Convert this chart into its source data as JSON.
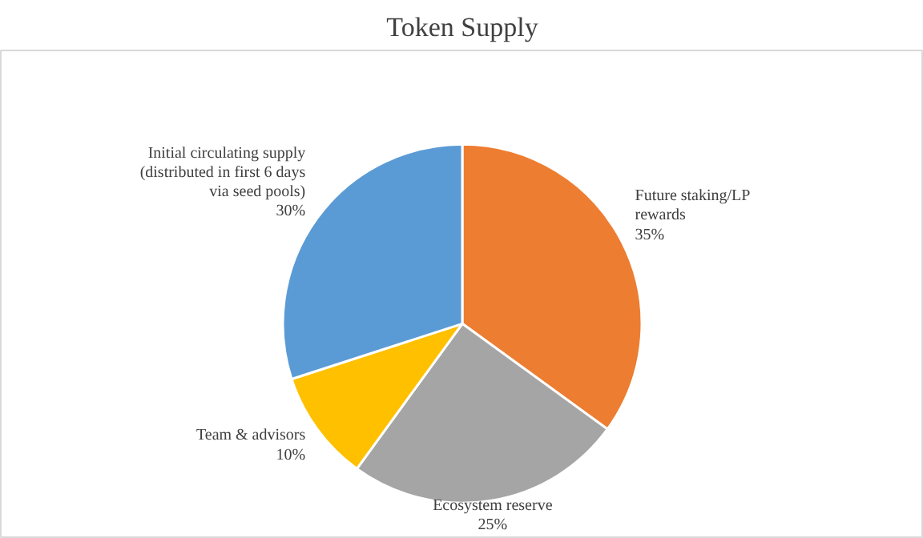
{
  "chart_data": {
    "type": "pie",
    "title": "Token Supply",
    "categories": [
      "Future staking/LP\nrewards",
      "Ecosystem reserve",
      "Team & advisors",
      "Initial circulating supply\n(distributed in first 6 days\nvia seed pools)"
    ],
    "values": [
      35,
      25,
      10,
      30
    ],
    "colors": [
      "#ed7d31",
      "#a5a5a5",
      "#ffc000",
      "#5b9bd5"
    ],
    "value_labels": [
      "35%",
      "25%",
      "10%",
      "30%"
    ],
    "legend": false
  }
}
